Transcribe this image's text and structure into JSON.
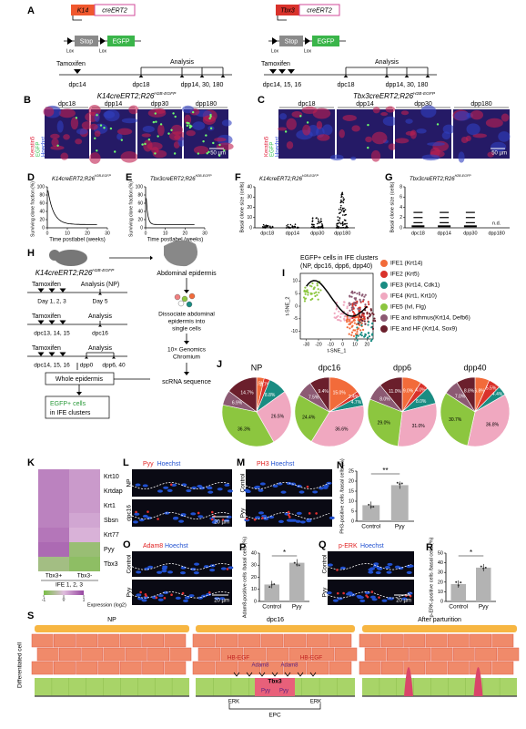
{
  "panels": {
    "A": {
      "label": "A",
      "left": {
        "promoter": "K14",
        "cre": "creERT2",
        "stop": "Stop",
        "reporter": "EGFP",
        "lox": [
          "Lox",
          "Lox"
        ],
        "tamoxifen": "Tamoxifen",
        "analysis": "Analysis",
        "tam_day": "dpc14",
        "analysis_days": [
          "dpc18",
          "dpp14, 30, 180"
        ]
      },
      "right": {
        "promoter": "Tbx3",
        "cre": "creERT2",
        "stop": "Stop",
        "reporter": "EGFP",
        "lox": [
          "Lox",
          "Lox"
        ],
        "tamoxifen": "Tamoxifen",
        "analysis": "Analysis",
        "tam_day": "dpc14, 15, 16",
        "analysis_days": [
          "dpc18",
          "dpp14, 30, 180"
        ]
      }
    },
    "B": {
      "label": "B",
      "genotype": "K14creERT2;R26",
      "sup": "H2B-EGFP",
      "stains": [
        "Keratin5",
        "EGFP",
        "Hoechst"
      ],
      "timepoints": [
        "dpc18",
        "dpp14",
        "dpp30",
        "dpp180"
      ],
      "scale": "50 µm"
    },
    "C": {
      "label": "C",
      "genotype": "Tbx3creERT2;R26",
      "sup": "H2B-EGFP",
      "stains": [
        "Keratin5",
        "EGFP",
        "Hoechst"
      ],
      "timepoints": [
        "dpc18",
        "dpp14",
        "dpp30",
        "dpp180"
      ],
      "scale": "50 µm"
    },
    "D": {
      "label": "D",
      "title": "K14creERT2;R26",
      "sup": "H2B-EGFP",
      "ylabel": "Surviving clone fraction (%)",
      "xlabel": "Time postlabel (weeks)",
      "xlim": [
        0,
        30
      ],
      "xticks": [
        0,
        10,
        20,
        30
      ],
      "ylim": [
        0,
        100
      ],
      "yticks": [
        0,
        20,
        40,
        60,
        80,
        100
      ]
    },
    "E": {
      "label": "E",
      "title": "Tbx3creERT2;R26",
      "sup": "H2B-EGFP",
      "ylabel": "Surviving clone fraction (%)",
      "xlabel": "Time postlabel (weeks)",
      "xlim": [
        0,
        30
      ],
      "xticks": [
        0,
        10,
        20,
        30
      ],
      "ylim": [
        0,
        100
      ],
      "yticks": [
        0,
        20,
        40,
        60,
        80,
        100
      ]
    },
    "F": {
      "label": "F",
      "title": "K14creERT2;R26",
      "sup": "H2B-EGFP",
      "ylabel": "Basal clone size (cells)",
      "categories": [
        "dpc18",
        "dpp14",
        "dpp30",
        "dpp180"
      ],
      "ylim": [
        0,
        40
      ],
      "yticks": [
        0,
        10,
        20,
        30,
        40
      ]
    },
    "G": {
      "label": "G",
      "title": "Tbx3creERT2;R26",
      "sup": "H2B-EGFP",
      "ylabel": "Basal clone size (cells)",
      "categories": [
        "dpc18",
        "dpp14",
        "dpp30",
        "dpp180"
      ],
      "ylim": [
        0,
        8
      ],
      "yticks": [
        0,
        2,
        4,
        6,
        8
      ],
      "note": "n.d."
    },
    "H": {
      "label": "H",
      "genotype": "K14creERT2;R26",
      "sup": "H2B-EGFP",
      "rows": [
        {
          "tamoxifen": "Tamoxifen",
          "analysis": "Analysis (NP)",
          "days": [
            "Day 1, 2, 3",
            "Day 5"
          ]
        },
        {
          "tamoxifen": "Tamoxifen",
          "analysis": "Analysis",
          "days": [
            "dpc13, 14, 15",
            "dpc16"
          ]
        },
        {
          "tamoxifen": "Tamoxifen",
          "analysis": "Analysis",
          "days": [
            "dpc14, 15, 16",
            "dpp0",
            "dpp6, 40"
          ]
        }
      ],
      "whole": "Whole epidermis",
      "egfp": [
        "EGFP+ cells",
        "in IFE clusters"
      ],
      "abdominal": "Abdominal epidermis",
      "dissociate": [
        "Dissociate abdominal",
        "epidermis into",
        "single cells"
      ],
      "chromium": [
        "10× Genomics",
        "Chromium"
      ],
      "scrna": "scRNA sequence"
    },
    "I": {
      "label": "I",
      "title": "EGFP+ cells in IFE clusters",
      "subtitle": "(NP, dpc16, dpp6, dpp40)",
      "xlabel": "t-SNE_1",
      "ylabel": "t-SNE_2",
      "xticks": [
        -30,
        -20,
        -10,
        0,
        10,
        20
      ],
      "yticks": [
        -10,
        -5,
        0,
        5,
        10
      ],
      "legend": [
        {
          "name": "IFE1 (Krt14)",
          "color": "#f26b3a"
        },
        {
          "name": "IFE2 (Krt5)",
          "color": "#d9322b"
        },
        {
          "name": "IFE3 (Krt14, Cdk1)",
          "color": "#1a8c82"
        },
        {
          "name": "IFE4 (Krt1, Krt10)",
          "color": "#f0a8c0"
        },
        {
          "name": "IFE5 (Ivl, Flg)",
          "color": "#8cc63f"
        },
        {
          "name": "IFE and isthmus(Krt14, Defb6)",
          "color": "#8c5a73"
        },
        {
          "name": "IFE and HF (Krt14, Sox9)",
          "color": "#6b1f2c"
        }
      ]
    },
    "J": {
      "label": "J",
      "pies": [
        {
          "title": "NP",
          "values": [
            3.5,
            2.7,
            8.8,
            26.5,
            36.3,
            6.9,
            14.7
          ],
          "value_labels": [
            "3.5%",
            "2.7%",
            "8.8%",
            "26.5%",
            "36.3%",
            "6.9%",
            "14.7%"
          ]
        },
        {
          "title": "dpc16",
          "values": [
            15.0,
            2.4,
            4.7,
            36.6,
            24.4,
            7.5,
            9.4
          ],
          "value_labels": [
            "15.0%",
            "2.4%",
            "4.7%",
            "36.6%",
            "24.4%",
            "7.5%",
            "9.4%"
          ]
        },
        {
          "title": "dpp6",
          "values": [
            9.0,
            4.0,
            8.0,
            31.0,
            29.0,
            8.0,
            11.0
          ],
          "value_labels": [
            "9.0%",
            "4.0%",
            "8.0%",
            "31.0%",
            "29.0%",
            "8.0%",
            "11.0%"
          ]
        },
        {
          "title": "dpp40",
          "values": [
            6.8,
            5.5,
            4.4,
            36.8,
            30.7,
            7.0,
            8.8
          ],
          "value_labels": [
            "6.8%",
            "5.5%",
            "4.4%",
            "36.8%",
            "30.7%",
            "7.0%",
            "8.8%"
          ]
        }
      ]
    },
    "K": {
      "label": "K",
      "rows": [
        "Krt10",
        "Krtdap",
        "Krt1",
        "Sbsn",
        "Krt77",
        "Pyy",
        "Tbx3"
      ],
      "columns": [
        "Tbx3+",
        "Tbx3-"
      ],
      "group": "IFE 1, 2, 3",
      "values": [
        [
          0.5,
          0.3
        ],
        [
          0.5,
          0.3
        ],
        [
          0.5,
          0.3
        ],
        [
          0.5,
          0.2
        ],
        [
          0.6,
          0.1
        ],
        [
          0.7,
          -0.7
        ],
        [
          -0.6,
          -0.8
        ]
      ],
      "scale_ticks": [
        -1,
        0,
        1
      ],
      "scale_label": "Expression (log2)"
    },
    "L": {
      "label": "L",
      "stains": [
        "Pyy",
        "Hoechst"
      ],
      "conditions": [
        "NP",
        "dpc16"
      ],
      "scale": "20 µm"
    },
    "M": {
      "label": "M",
      "stains": [
        "PH3",
        "Hoechst"
      ],
      "conditions": [
        "Control",
        "Pyy"
      ]
    },
    "N": {
      "label": "N",
      "ylabel": "PH3-positive cells /basal cells (%)",
      "categories": [
        "Control",
        "Pyy"
      ],
      "values": [
        8,
        18
      ],
      "ylim": [
        0,
        25
      ],
      "yticks": [
        0,
        5,
        10,
        15,
        20,
        25
      ],
      "sig": "**"
    },
    "O": {
      "label": "O",
      "stains": [
        "Adam8",
        "Hoechst"
      ],
      "conditions": [
        "Control",
        "Pyy"
      ],
      "scale": "20 µm"
    },
    "P": {
      "label": "P",
      "ylabel": "Adam8-positive cells /basal cells (%)",
      "categories": [
        "Control",
        "Pyy"
      ],
      "values": [
        14,
        32
      ],
      "ylim": [
        0,
        40
      ],
      "yticks": [
        0,
        10,
        20,
        30,
        40
      ],
      "sig": "*"
    },
    "Q": {
      "label": "Q",
      "stains": [
        "p-ERK",
        "Hoechst"
      ],
      "conditions": [
        "Control",
        "Pyy"
      ],
      "scale": "20 µm"
    },
    "R": {
      "label": "R",
      "ylabel": "p-ERK-positive cells /basal cells (%)",
      "categories": [
        "Control",
        "Pyy"
      ],
      "values": [
        18,
        35
      ],
      "ylim": [
        0,
        50
      ],
      "yticks": [
        0,
        10,
        20,
        30,
        40,
        50
      ],
      "sig": "*"
    },
    "S": {
      "label": "S",
      "side": "Differentiated cell",
      "stages": [
        "NP",
        "dpc16",
        "After parturition"
      ],
      "hbegf": [
        "HB-EGF",
        "HB-EGF"
      ],
      "adam8": [
        "Adam8",
        "Adam8"
      ],
      "tbx3": "Tbx3",
      "pyy": [
        "Pyy",
        "Pyy"
      ],
      "erk": [
        "ERK",
        "ERK"
      ],
      "epc": "EPC"
    }
  }
}
